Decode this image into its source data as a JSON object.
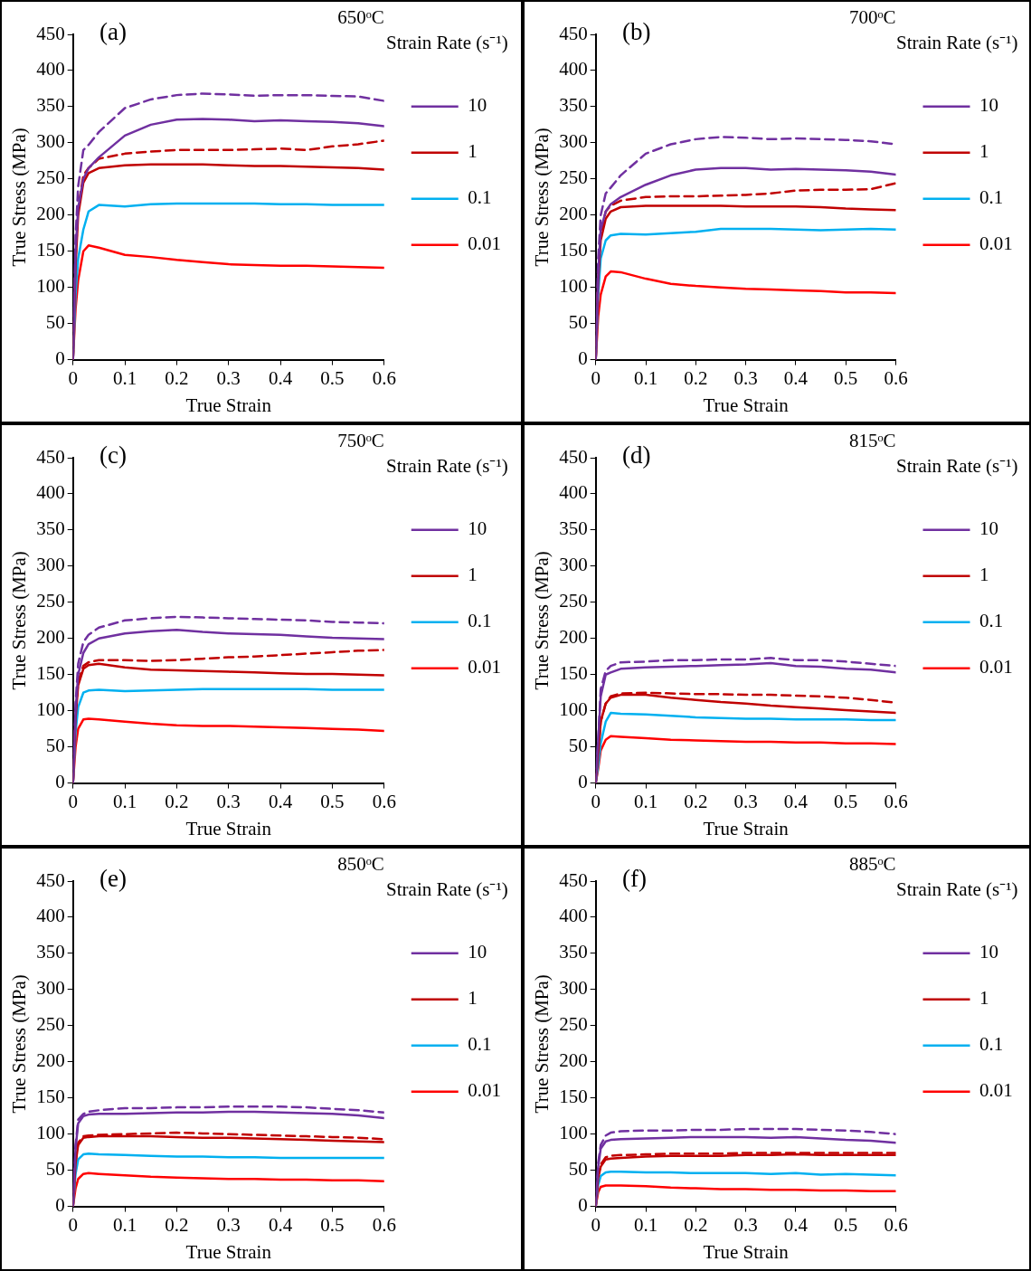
{
  "chart_data": [
    {
      "type": "line",
      "title": "(a)",
      "subtitle": "650ᵒC",
      "legend_title": "Strain Rate (s⁻¹)",
      "xlabel": "True Strain",
      "ylabel": "True Stress (MPa)",
      "legend": "right",
      "marker": "none",
      "xlim": [
        0,
        0.6
      ],
      "xticks": [
        0,
        0.1,
        0.2,
        0.3,
        0.4,
        0.5,
        0.6
      ],
      "ylim": [
        0,
        450
      ],
      "yticks": [
        0,
        50,
        100,
        150,
        200,
        250,
        300,
        350,
        400,
        450
      ],
      "x": [
        0,
        0.005,
        0.01,
        0.02,
        0.03,
        0.05,
        0.1,
        0.15,
        0.2,
        0.25,
        0.3,
        0.35,
        0.4,
        0.45,
        0.5,
        0.55,
        0.6
      ],
      "series": [
        {
          "name": "10",
          "color": "#7030a0",
          "line_style": "solid",
          "values": [
            0,
            150,
            210,
            250,
            265,
            280,
            310,
            325,
            332,
            333,
            332,
            330,
            331,
            330,
            329,
            327,
            323
          ]
        },
        {
          "name": "1",
          "color": "#c00000",
          "line_style": "solid",
          "values": [
            0,
            130,
            200,
            245,
            258,
            265,
            269,
            270,
            270,
            270,
            269,
            268,
            268,
            267,
            266,
            265,
            263
          ]
        },
        {
          "name": "0.1",
          "color": "#00b0f0",
          "line_style": "solid",
          "values": [
            0,
            90,
            140,
            180,
            205,
            214,
            212,
            215,
            216,
            216,
            216,
            216,
            215,
            215,
            214,
            214,
            214
          ]
        },
        {
          "name": "0.01",
          "color": "#ff0000",
          "line_style": "solid",
          "values": [
            0,
            70,
            110,
            150,
            158,
            155,
            145,
            142,
            138,
            135,
            132,
            131,
            130,
            130,
            129,
            128,
            127
          ]
        },
        {
          "color": "#7030a0",
          "line_style": "dashed",
          "values": [
            0,
            170,
            240,
            290,
            297,
            315,
            348,
            360,
            366,
            368,
            367,
            365,
            366,
            366,
            365,
            364,
            358
          ]
        },
        {
          "color": "#c00000",
          "line_style": "dashed",
          "values": [
            0,
            140,
            210,
            255,
            265,
            278,
            285,
            288,
            290,
            290,
            290,
            291,
            292,
            290,
            295,
            298,
            303
          ]
        }
      ]
    },
    {
      "type": "line",
      "title": "(b)",
      "subtitle": "700ᵒC",
      "legend_title": "Strain Rate (s⁻¹)",
      "xlabel": "True Strain",
      "ylabel": "True Stress (MPa)",
      "legend": "right",
      "marker": "none",
      "xlim": [
        0,
        0.6
      ],
      "xticks": [
        0,
        0.1,
        0.2,
        0.3,
        0.4,
        0.5,
        0.6
      ],
      "ylim": [
        0,
        450
      ],
      "yticks": [
        0,
        50,
        100,
        150,
        200,
        250,
        300,
        350,
        400,
        450
      ],
      "x": [
        0,
        0.005,
        0.01,
        0.02,
        0.03,
        0.05,
        0.1,
        0.15,
        0.2,
        0.25,
        0.3,
        0.35,
        0.4,
        0.45,
        0.5,
        0.55,
        0.6
      ],
      "series": [
        {
          "name": "10",
          "color": "#7030a0",
          "line_style": "solid",
          "values": [
            0,
            120,
            180,
            205,
            215,
            225,
            242,
            255,
            263,
            265,
            265,
            263,
            264,
            263,
            262,
            260,
            256
          ]
        },
        {
          "name": "1",
          "color": "#c00000",
          "line_style": "solid",
          "values": [
            0,
            110,
            165,
            195,
            205,
            211,
            213,
            213,
            213,
            213,
            212,
            212,
            212,
            211,
            209,
            208,
            207
          ]
        },
        {
          "name": "0.1",
          "color": "#00b0f0",
          "line_style": "solid",
          "values": [
            0,
            90,
            140,
            165,
            172,
            174,
            173,
            175,
            177,
            181,
            181,
            181,
            180,
            179,
            180,
            181,
            180
          ]
        },
        {
          "name": "0.01",
          "color": "#ff0000",
          "line_style": "solid",
          "values": [
            0,
            60,
            90,
            115,
            122,
            121,
            112,
            105,
            102,
            100,
            98,
            97,
            96,
            95,
            93,
            93,
            92
          ]
        },
        {
          "color": "#7030a0",
          "line_style": "dashed",
          "values": [
            0,
            140,
            200,
            230,
            238,
            255,
            285,
            298,
            305,
            308,
            307,
            305,
            306,
            305,
            304,
            302,
            298
          ]
        },
        {
          "color": "#c00000",
          "line_style": "dashed",
          "values": [
            0,
            120,
            175,
            205,
            213,
            220,
            225,
            226,
            226,
            227,
            228,
            230,
            234,
            235,
            235,
            236,
            244
          ]
        }
      ]
    },
    {
      "type": "line",
      "title": "(c)",
      "subtitle": "750ᵒC",
      "legend_title": "Strain Rate (s⁻¹)",
      "xlabel": "True Strain",
      "ylabel": "True Stress (MPa)",
      "legend": "right",
      "marker": "none",
      "xlim": [
        0,
        0.6
      ],
      "xticks": [
        0,
        0.1,
        0.2,
        0.3,
        0.4,
        0.5,
        0.6
      ],
      "ylim": [
        0,
        450
      ],
      "yticks": [
        0,
        50,
        100,
        150,
        200,
        250,
        300,
        350,
        400,
        450
      ],
      "x": [
        0,
        0.005,
        0.01,
        0.02,
        0.03,
        0.05,
        0.1,
        0.15,
        0.2,
        0.25,
        0.3,
        0.35,
        0.4,
        0.45,
        0.5,
        0.55,
        0.6
      ],
      "series": [
        {
          "name": "10",
          "color": "#7030a0",
          "line_style": "solid",
          "values": [
            0,
            100,
            150,
            180,
            192,
            200,
            207,
            210,
            212,
            209,
            207,
            206,
            205,
            203,
            201,
            200,
            199
          ]
        },
        {
          "name": "1",
          "color": "#c00000",
          "line_style": "solid",
          "values": [
            0,
            90,
            135,
            158,
            163,
            165,
            160,
            157,
            156,
            155,
            154,
            153,
            152,
            151,
            151,
            150,
            149
          ]
        },
        {
          "name": "0.1",
          "color": "#00b0f0",
          "line_style": "solid",
          "values": [
            0,
            70,
            105,
            125,
            128,
            129,
            127,
            128,
            129,
            130,
            130,
            130,
            130,
            130,
            129,
            129,
            129
          ]
        },
        {
          "name": "0.01",
          "color": "#ff0000",
          "line_style": "solid",
          "values": [
            0,
            50,
            75,
            88,
            89,
            88,
            85,
            82,
            80,
            79,
            79,
            78,
            77,
            76,
            75,
            74,
            72
          ]
        },
        {
          "color": "#7030a0",
          "line_style": "dashed",
          "values": [
            0,
            110,
            165,
            195,
            205,
            215,
            225,
            228,
            230,
            229,
            228,
            227,
            226,
            225,
            223,
            222,
            221
          ]
        },
        {
          "color": "#c00000",
          "line_style": "dashed",
          "values": [
            0,
            95,
            140,
            162,
            167,
            170,
            170,
            169,
            170,
            172,
            174,
            175,
            177,
            179,
            181,
            183,
            184
          ]
        }
      ]
    },
    {
      "type": "line",
      "title": "(d)",
      "subtitle": "815ᵒC",
      "legend_title": "Strain Rate (s⁻¹)",
      "xlabel": "True Strain",
      "ylabel": "True Stress (MPa)",
      "legend": "right",
      "marker": "none",
      "xlim": [
        0,
        0.6
      ],
      "xticks": [
        0,
        0.1,
        0.2,
        0.3,
        0.4,
        0.5,
        0.6
      ],
      "ylim": [
        0,
        450
      ],
      "yticks": [
        0,
        50,
        100,
        150,
        200,
        250,
        300,
        350,
        400,
        450
      ],
      "x": [
        0,
        0.005,
        0.01,
        0.02,
        0.03,
        0.05,
        0.1,
        0.15,
        0.2,
        0.25,
        0.3,
        0.35,
        0.4,
        0.45,
        0.5,
        0.55,
        0.6
      ],
      "series": [
        {
          "name": "10",
          "color": "#7030a0",
          "line_style": "solid",
          "values": [
            0,
            60,
            120,
            150,
            153,
            158,
            160,
            161,
            162,
            163,
            164,
            166,
            162,
            161,
            158,
            157,
            153
          ]
        },
        {
          "name": "1",
          "color": "#c00000",
          "line_style": "solid",
          "values": [
            0,
            40,
            85,
            110,
            118,
            122,
            122,
            118,
            115,
            112,
            110,
            107,
            105,
            103,
            101,
            99,
            97
          ]
        },
        {
          "name": "0.1",
          "color": "#00b0f0",
          "line_style": "solid",
          "values": [
            0,
            25,
            55,
            85,
            97,
            96,
            95,
            93,
            91,
            90,
            89,
            89,
            88,
            88,
            88,
            87,
            87
          ]
        },
        {
          "name": "0.01",
          "color": "#ff0000",
          "line_style": "solid",
          "values": [
            0,
            20,
            45,
            60,
            65,
            64,
            62,
            60,
            59,
            58,
            57,
            57,
            56,
            56,
            55,
            55,
            54
          ]
        },
        {
          "color": "#7030a0",
          "line_style": "dashed",
          "values": [
            0,
            60,
            130,
            155,
            162,
            167,
            168,
            170,
            170,
            171,
            171,
            173,
            170,
            170,
            168,
            165,
            162
          ]
        },
        {
          "color": "#c00000",
          "line_style": "dashed",
          "values": [
            0,
            40,
            85,
            110,
            120,
            124,
            125,
            124,
            123,
            123,
            122,
            122,
            121,
            120,
            118,
            115,
            111
          ]
        }
      ]
    },
    {
      "type": "line",
      "title": "(e)",
      "subtitle": "850ᵒC",
      "legend_title": "Strain Rate (s⁻¹)",
      "xlabel": "True Strain",
      "ylabel": "True Stress (MPa)",
      "legend": "right",
      "marker": "none",
      "xlim": [
        0,
        0.6
      ],
      "xticks": [
        0,
        0.1,
        0.2,
        0.3,
        0.4,
        0.5,
        0.6
      ],
      "ylim": [
        0,
        450
      ],
      "yticks": [
        0,
        50,
        100,
        150,
        200,
        250,
        300,
        350,
        400,
        450
      ],
      "x": [
        0,
        0.005,
        0.01,
        0.02,
        0.03,
        0.05,
        0.1,
        0.15,
        0.2,
        0.25,
        0.3,
        0.35,
        0.4,
        0.45,
        0.5,
        0.55,
        0.6
      ],
      "series": [
        {
          "name": "10",
          "color": "#7030a0",
          "line_style": "solid",
          "values": [
            0,
            80,
            115,
            125,
            127,
            128,
            128,
            129,
            130,
            130,
            131,
            131,
            130,
            129,
            128,
            126,
            122
          ]
        },
        {
          "name": "1",
          "color": "#c00000",
          "line_style": "solid",
          "values": [
            0,
            60,
            85,
            95,
            96,
            97,
            97,
            97,
            96,
            95,
            95,
            94,
            93,
            92,
            91,
            90,
            89
          ]
        },
        {
          "name": "0.1",
          "color": "#00b0f0",
          "line_style": "solid",
          "values": [
            0,
            45,
            65,
            72,
            73,
            72,
            71,
            70,
            69,
            69,
            68,
            68,
            67,
            67,
            67,
            67,
            67
          ]
        },
        {
          "name": "0.01",
          "color": "#ff0000",
          "line_style": "solid",
          "values": [
            0,
            25,
            38,
            45,
            46,
            45,
            43,
            41,
            40,
            39,
            38,
            38,
            37,
            37,
            36,
            36,
            35
          ]
        },
        {
          "color": "#7030a0",
          "line_style": "dashed",
          "values": [
            0,
            85,
            120,
            128,
            131,
            133,
            136,
            136,
            137,
            137,
            138,
            138,
            138,
            137,
            135,
            133,
            130
          ]
        },
        {
          "color": "#c00000",
          "line_style": "dashed",
          "values": [
            0,
            60,
            88,
            97,
            98,
            99,
            100,
            101,
            102,
            101,
            100,
            99,
            98,
            97,
            96,
            95,
            93
          ]
        }
      ]
    },
    {
      "type": "line",
      "title": "(f)",
      "subtitle": "885ᵒC",
      "legend_title": "Strain Rate (s⁻¹)",
      "xlabel": "True Strain",
      "ylabel": "True Stress (MPa)",
      "legend": "right",
      "marker": "none",
      "xlim": [
        0,
        0.6
      ],
      "xticks": [
        0,
        0.1,
        0.2,
        0.3,
        0.4,
        0.5,
        0.6
      ],
      "ylim": [
        0,
        450
      ],
      "yticks": [
        0,
        50,
        100,
        150,
        200,
        250,
        300,
        350,
        400,
        450
      ],
      "x": [
        0,
        0.005,
        0.01,
        0.02,
        0.03,
        0.05,
        0.1,
        0.15,
        0.2,
        0.25,
        0.3,
        0.35,
        0.4,
        0.45,
        0.5,
        0.55,
        0.6
      ],
      "series": [
        {
          "name": "10",
          "color": "#7030a0",
          "line_style": "solid",
          "values": [
            0,
            55,
            80,
            90,
            92,
            93,
            94,
            95,
            96,
            96,
            96,
            95,
            96,
            94,
            92,
            91,
            88
          ]
        },
        {
          "name": "1",
          "color": "#c00000",
          "line_style": "solid",
          "values": [
            0,
            40,
            55,
            65,
            66,
            67,
            69,
            70,
            70,
            70,
            71,
            71,
            72,
            71,
            71,
            71,
            71
          ]
        },
        {
          "name": "0.1",
          "color": "#00b0f0",
          "line_style": "solid",
          "values": [
            0,
            30,
            42,
            47,
            48,
            48,
            47,
            47,
            46,
            46,
            46,
            45,
            46,
            44,
            45,
            44,
            43
          ]
        },
        {
          "name": "0.01",
          "color": "#ff0000",
          "line_style": "solid",
          "values": [
            0,
            20,
            27,
            29,
            29,
            29,
            28,
            26,
            25,
            24,
            24,
            23,
            23,
            22,
            22,
            21,
            21
          ]
        },
        {
          "color": "#7030a0",
          "line_style": "dashed",
          "values": [
            0,
            60,
            85,
            98,
            102,
            104,
            105,
            105,
            106,
            106,
            107,
            107,
            107,
            106,
            105,
            103,
            100
          ]
        },
        {
          "color": "#c00000",
          "line_style": "dashed",
          "values": [
            0,
            42,
            58,
            68,
            70,
            71,
            72,
            73,
            73,
            73,
            74,
            74,
            74,
            74,
            74,
            74,
            74
          ]
        }
      ]
    }
  ]
}
